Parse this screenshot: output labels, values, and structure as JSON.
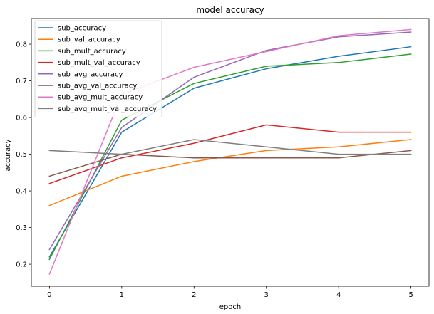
{
  "chart_data": {
    "type": "line",
    "title": "model accuracy",
    "xlabel": "epoch",
    "ylabel": "accuracy",
    "x": [
      0,
      1,
      2,
      3,
      4,
      5
    ],
    "xlim": [
      -0.25,
      5.25
    ],
    "ylim": [
      0.14,
      0.87
    ],
    "xticks": [
      0,
      1,
      2,
      3,
      4,
      5
    ],
    "yticks": [
      0.2,
      0.3,
      0.4,
      0.5,
      0.6,
      0.7,
      0.8
    ],
    "legend_position": "top-left",
    "grid": false,
    "series": [
      {
        "name": "sub_accuracy",
        "color": "#1f77b4",
        "values": [
          0.22,
          0.56,
          0.68,
          0.733,
          0.767,
          0.793
        ]
      },
      {
        "name": "sub_val_accuracy",
        "color": "#ff7f0e",
        "values": [
          0.36,
          0.44,
          0.48,
          0.51,
          0.52,
          0.54
        ]
      },
      {
        "name": "sub_mult_accuracy",
        "color": "#2ca02c",
        "values": [
          0.213,
          0.593,
          0.693,
          0.74,
          0.75,
          0.773
        ]
      },
      {
        "name": "sub_mult_val_accuracy",
        "color": "#d62728",
        "values": [
          0.42,
          0.49,
          0.53,
          0.58,
          0.56,
          0.56
        ]
      },
      {
        "name": "sub_avg_accuracy",
        "color": "#9467bd",
        "values": [
          0.24,
          0.573,
          0.71,
          0.783,
          0.82,
          0.833
        ]
      },
      {
        "name": "sub_avg_val_accuracy",
        "color": "#8c564b",
        "values": [
          0.44,
          0.5,
          0.49,
          0.49,
          0.49,
          0.51
        ]
      },
      {
        "name": "sub_avg_mult_accuracy",
        "color": "#e377c2",
        "values": [
          0.173,
          0.663,
          0.737,
          0.78,
          0.823,
          0.84
        ]
      },
      {
        "name": "sub_avg_mult_val_accuracy",
        "color": "#7f7f7f",
        "values": [
          0.51,
          0.5,
          0.54,
          0.52,
          0.5,
          0.5
        ]
      }
    ]
  }
}
